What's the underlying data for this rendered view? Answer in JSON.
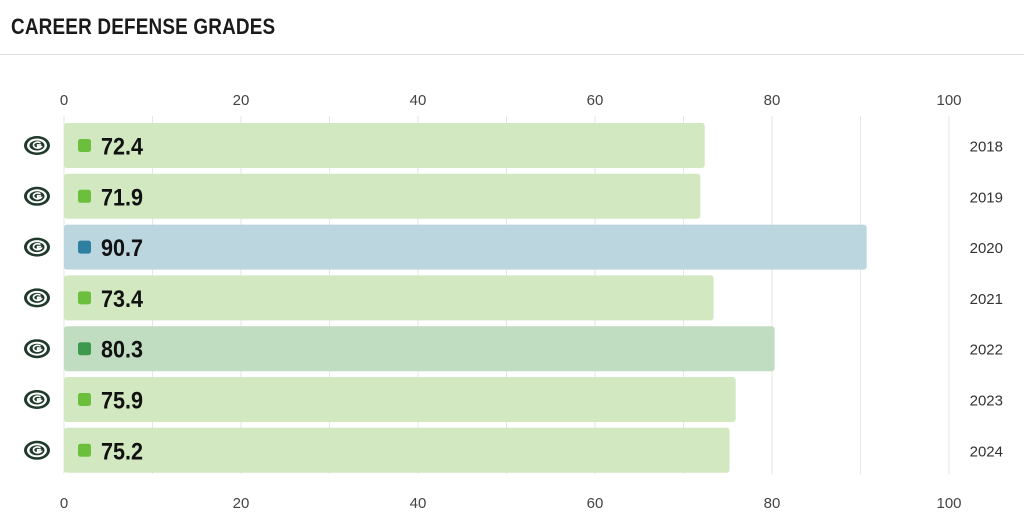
{
  "header": {
    "title": "CAREER DEFENSE GRADES"
  },
  "team_icon": "team-logo-icon",
  "colors": {
    "bar_green": "#d2e8c0",
    "bar_blue": "#bcd6e0",
    "bar_darkgreen": "#c0ddc2",
    "marker_green": "#6cbf3c",
    "marker_blue": "#2e7fa0",
    "marker_darkgreen": "#3d9a4c",
    "grid": "#e6e6e6",
    "logo_dark": "#1f3a2a"
  },
  "chart_data": {
    "type": "bar",
    "orientation": "horizontal",
    "title": "CAREER DEFENSE GRADES",
    "categories": [
      "2018",
      "2019",
      "2020",
      "2021",
      "2022",
      "2023",
      "2024"
    ],
    "values": [
      72.4,
      71.9,
      90.7,
      73.4,
      80.3,
      75.9,
      75.2
    ],
    "value_labels": [
      "72.4",
      "71.9",
      "90.7",
      "73.4",
      "80.3",
      "75.9",
      "75.2"
    ],
    "grade_tier": [
      "green",
      "green",
      "blue",
      "green",
      "darkgreen",
      "green",
      "green"
    ],
    "xlim": [
      0,
      100
    ],
    "xticks": [
      "0",
      "20",
      "40",
      "60",
      "80",
      "100"
    ],
    "tick_values": [
      0,
      20,
      40,
      60,
      80,
      100
    ],
    "axis_position": "top and bottom",
    "grid": true
  }
}
